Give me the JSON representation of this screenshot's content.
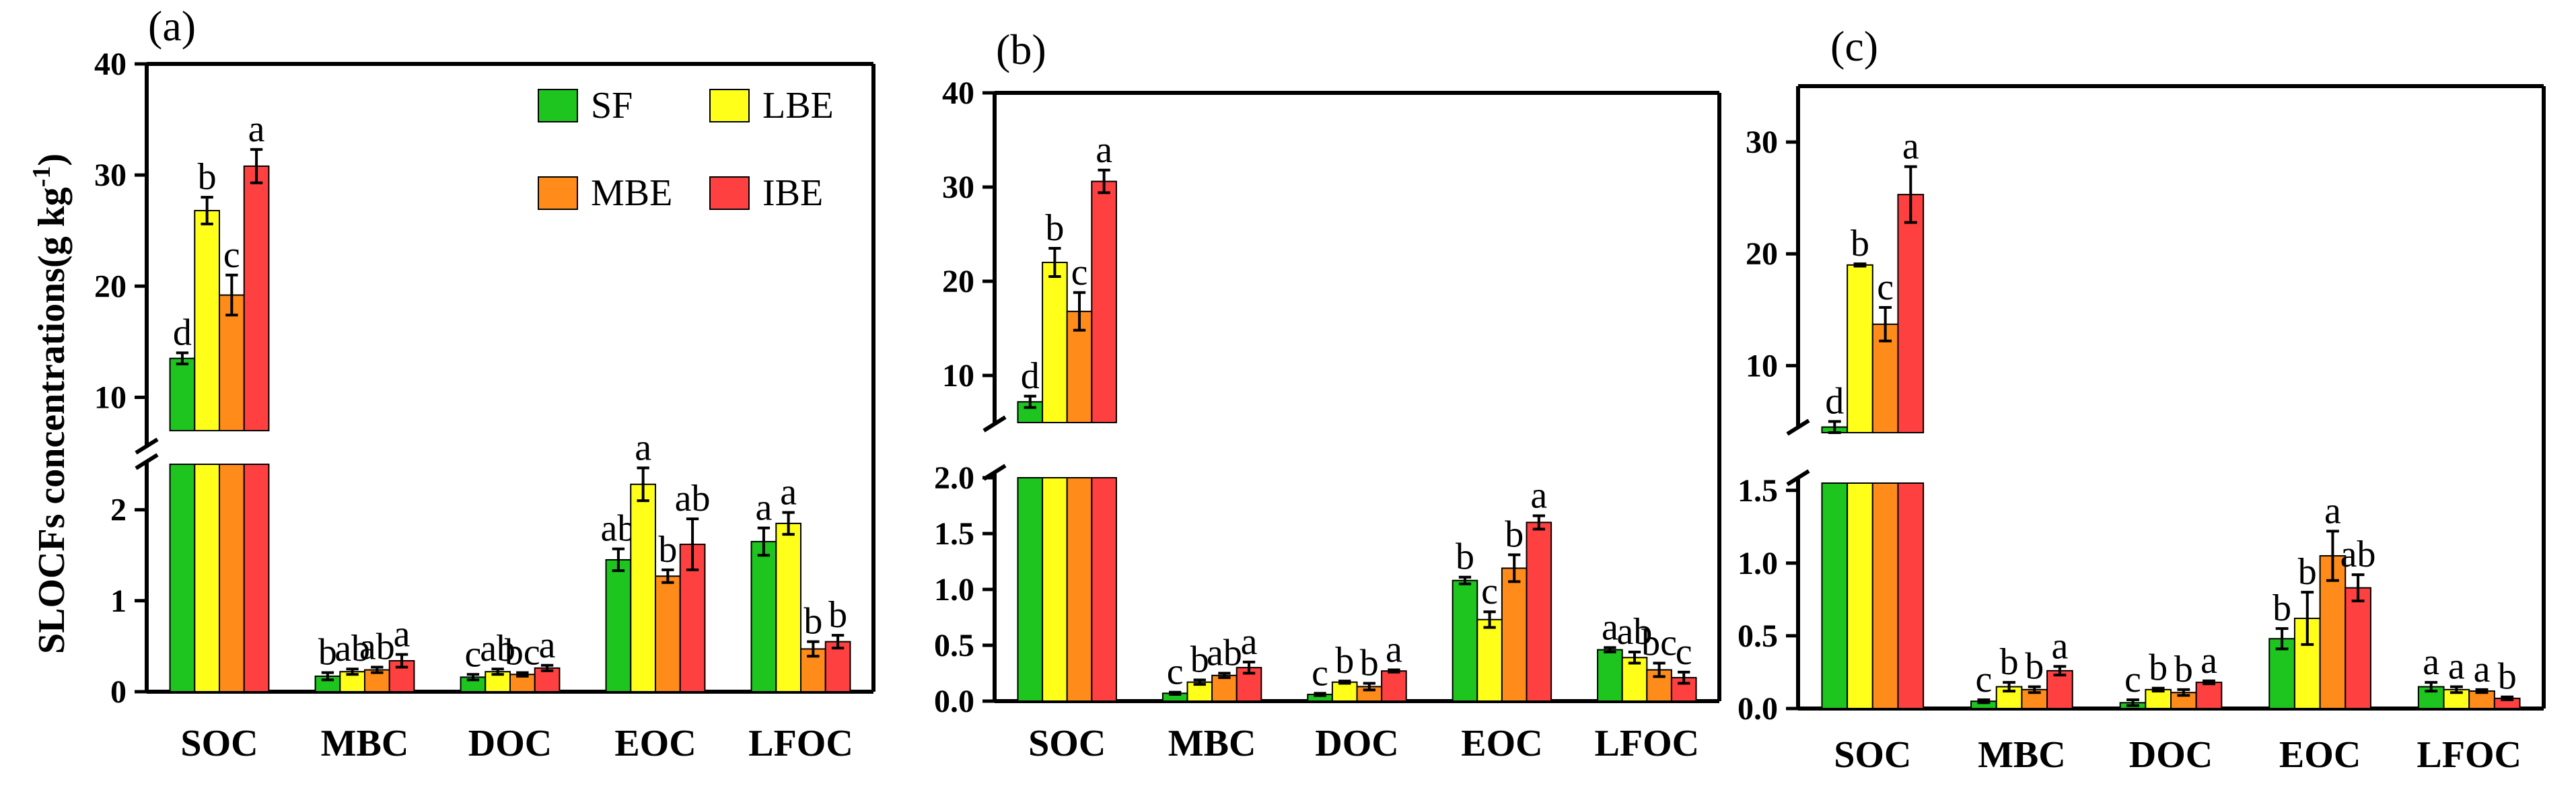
{
  "chart_data": [
    {
      "type": "bar",
      "panel": "(a)",
      "categories": [
        "SOC",
        "MBC",
        "DOC",
        "EOC",
        "LFOC"
      ],
      "series": [
        {
          "name": "SF",
          "values": [
            13.5,
            0.17,
            0.16,
            1.45,
            1.65
          ],
          "errors": [
            0.5,
            0.04,
            0.03,
            0.12,
            0.15
          ],
          "letters": [
            "d",
            "b",
            "c",
            "ab",
            "a"
          ]
        },
        {
          "name": "LBE",
          "values": [
            26.8,
            0.22,
            0.22,
            2.28,
            1.85
          ],
          "errors": [
            1.2,
            0.03,
            0.03,
            0.18,
            0.12
          ],
          "letters": [
            "b",
            "ab",
            "ab",
            "a",
            "a"
          ]
        },
        {
          "name": "MBE",
          "values": [
            19.2,
            0.24,
            0.19,
            1.27,
            0.47
          ],
          "errors": [
            1.8,
            0.03,
            0.02,
            0.07,
            0.08
          ],
          "letters": [
            "c",
            "ab",
            "bc",
            "b",
            "b"
          ]
        },
        {
          "name": "IBE",
          "values": [
            30.8,
            0.34,
            0.26,
            1.62,
            0.55
          ],
          "errors": [
            1.5,
            0.07,
            0.03,
            0.28,
            0.07
          ],
          "letters": [
            "a",
            "a",
            "a",
            "ab",
            "b"
          ]
        }
      ],
      "axis_upper": {
        "ticks": [
          "10",
          "20",
          "30",
          "40"
        ],
        "range": [
          7,
          40
        ]
      },
      "axis_lower": {
        "ticks": [
          "0",
          "1",
          "2"
        ],
        "range": [
          0,
          2.5
        ]
      },
      "ylabel": "SLOCFs concentrations(g kg-1)",
      "legend": [
        "SF",
        "LBE",
        "MBE",
        "IBE"
      ]
    },
    {
      "type": "bar",
      "panel": "(b)",
      "categories": [
        "SOC",
        "MBC",
        "DOC",
        "EOC",
        "LFOC"
      ],
      "series": [
        {
          "name": "SF",
          "values": [
            7.2,
            0.07,
            0.06,
            1.08,
            0.46
          ],
          "errors": [
            0.6,
            0.01,
            0.01,
            0.03,
            0.02
          ],
          "letters": [
            "d",
            "c",
            "c",
            "b",
            "a"
          ]
        },
        {
          "name": "LBE",
          "values": [
            22.0,
            0.17,
            0.17,
            0.73,
            0.39
          ],
          "errors": [
            1.5,
            0.02,
            0.01,
            0.07,
            0.05
          ],
          "letters": [
            "b",
            "b",
            "b",
            "c",
            "ab"
          ]
        },
        {
          "name": "MBE",
          "values": [
            16.8,
            0.23,
            0.13,
            1.19,
            0.28
          ],
          "errors": [
            2.0,
            0.02,
            0.03,
            0.12,
            0.06
          ],
          "letters": [
            "c",
            "ab",
            "b",
            "b",
            "bc"
          ]
        },
        {
          "name": "IBE",
          "values": [
            30.6,
            0.3,
            0.27,
            1.6,
            0.21
          ],
          "errors": [
            1.2,
            0.05,
            0.01,
            0.06,
            0.05
          ],
          "letters": [
            "a",
            "a",
            "a",
            "a",
            "c"
          ]
        }
      ],
      "axis_upper": {
        "ticks": [
          "10",
          "20",
          "30",
          "40"
        ],
        "range": [
          5,
          40
        ]
      },
      "axis_lower": {
        "ticks": [
          "0.0",
          "0.5",
          "1.0",
          "1.5",
          "2.0"
        ],
        "range": [
          0,
          2.0
        ]
      },
      "legend": []
    },
    {
      "type": "bar",
      "panel": "(c)",
      "categories": [
        "SOC",
        "MBC",
        "DOC",
        "EOC",
        "LFOC"
      ],
      "series": [
        {
          "name": "SF",
          "values": [
            4.5,
            0.05,
            0.04,
            0.48,
            0.15
          ],
          "errors": [
            0.5,
            0.01,
            0.02,
            0.07,
            0.03
          ],
          "letters": [
            "d",
            "c",
            "c",
            "b",
            "a"
          ]
        },
        {
          "name": "LBE",
          "values": [
            19.0,
            0.15,
            0.13,
            0.62,
            0.13
          ],
          "errors": [
            0.1,
            0.03,
            0.01,
            0.18,
            0.02
          ],
          "letters": [
            "b",
            "b",
            "b",
            "b",
            "a"
          ]
        },
        {
          "name": "MBE",
          "values": [
            13.7,
            0.13,
            0.11,
            1.05,
            0.12
          ],
          "errors": [
            1.5,
            0.02,
            0.02,
            0.17,
            0.01
          ],
          "letters": [
            "c",
            "b",
            "b",
            "a",
            "a"
          ]
        },
        {
          "name": "IBE",
          "values": [
            25.3,
            0.26,
            0.18,
            0.83,
            0.07
          ],
          "errors": [
            2.5,
            0.03,
            0.01,
            0.09,
            0.01
          ],
          "letters": [
            "a",
            "a",
            "a",
            "ab",
            "b"
          ]
        }
      ],
      "axis_upper": {
        "ticks": [
          "10",
          "20",
          "30"
        ],
        "range": [
          4,
          35
        ]
      },
      "axis_lower": {
        "ticks": [
          "0.0",
          "0.5",
          "1.0",
          "1.5"
        ],
        "range": [
          0,
          1.55
        ]
      },
      "legend": []
    }
  ],
  "colors": {
    "SF": "#1ec51e",
    "LBE": "#ffff1a",
    "MBE": "#ff8c1a",
    "IBE": "#ff4040"
  }
}
